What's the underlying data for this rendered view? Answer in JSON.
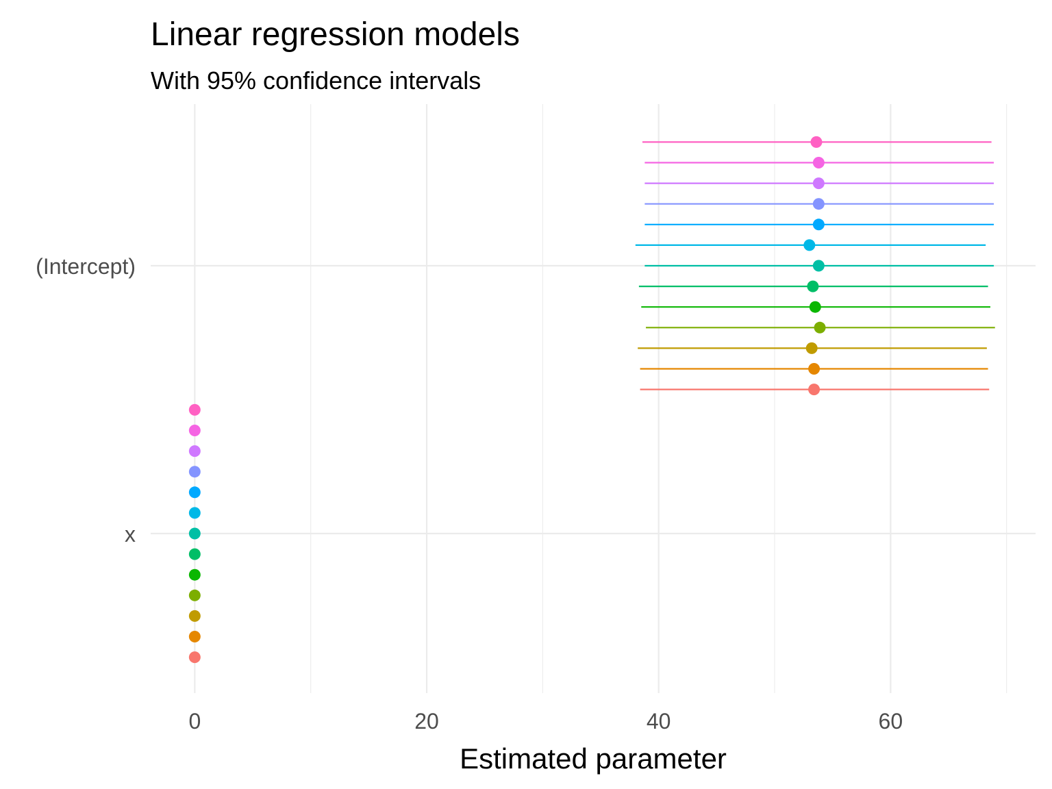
{
  "chart_data": {
    "type": "scatter",
    "title": "Linear regression models",
    "subtitle": "With 95% confidence intervals",
    "xlabel": "Estimated parameter",
    "ylabel": "",
    "xlim": [
      -3.8,
      72.5
    ],
    "x_ticks": [
      0,
      20,
      40,
      60
    ],
    "x_tick_labels": [
      "0",
      "20",
      "40",
      "60"
    ],
    "y_categories": [
      "(Intercept)",
      "x"
    ],
    "grid": true,
    "legend": "none",
    "series": [
      {
        "color": "#F8766D",
        "intercept": {
          "estimate": 53.4,
          "low": 38.4,
          "high": 68.5
        },
        "x": {
          "estimate": 0.0
        }
      },
      {
        "color": "#E58700",
        "intercept": {
          "estimate": 53.4,
          "low": 38.4,
          "high": 68.4
        },
        "x": {
          "estimate": 0.0
        }
      },
      {
        "color": "#C09B00",
        "intercept": {
          "estimate": 53.2,
          "low": 38.2,
          "high": 68.3
        },
        "x": {
          "estimate": 0.0
        }
      },
      {
        "color": "#7CAE00",
        "intercept": {
          "estimate": 53.9,
          "low": 38.9,
          "high": 69.0
        },
        "x": {
          "estimate": 0.0
        }
      },
      {
        "color": "#0BB702",
        "intercept": {
          "estimate": 53.5,
          "low": 38.5,
          "high": 68.6
        },
        "x": {
          "estimate": 0.0
        }
      },
      {
        "color": "#00BE67",
        "intercept": {
          "estimate": 53.3,
          "low": 38.3,
          "high": 68.4
        },
        "x": {
          "estimate": 0.0
        }
      },
      {
        "color": "#00BFA5",
        "intercept": {
          "estimate": 53.8,
          "low": 38.8,
          "high": 68.9
        },
        "x": {
          "estimate": 0.0
        }
      },
      {
        "color": "#00B8E7",
        "intercept": {
          "estimate": 53.0,
          "low": 38.0,
          "high": 68.2
        },
        "x": {
          "estimate": 0.0
        }
      },
      {
        "color": "#00A9FF",
        "intercept": {
          "estimate": 53.8,
          "low": 38.8,
          "high": 68.9
        },
        "x": {
          "estimate": 0.0
        }
      },
      {
        "color": "#8494FF",
        "intercept": {
          "estimate": 53.8,
          "low": 38.8,
          "high": 68.9
        },
        "x": {
          "estimate": 0.0
        }
      },
      {
        "color": "#CF78FF",
        "intercept": {
          "estimate": 53.8,
          "low": 38.8,
          "high": 68.9
        },
        "x": {
          "estimate": 0.0
        }
      },
      {
        "color": "#F564E3",
        "intercept": {
          "estimate": 53.8,
          "low": 38.8,
          "high": 68.9
        },
        "x": {
          "estimate": 0.0
        }
      },
      {
        "color": "#FF61C3",
        "intercept": {
          "estimate": 53.6,
          "low": 38.6,
          "high": 68.7
        },
        "x": {
          "estimate": 0.0
        }
      }
    ]
  }
}
